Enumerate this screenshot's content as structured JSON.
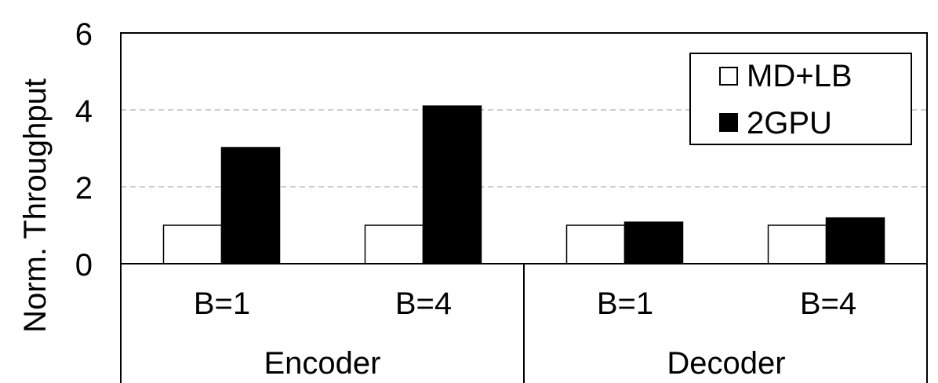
{
  "chart_data": {
    "type": "bar",
    "ylabel": "Norm. Throughput",
    "ylim": [
      0,
      6
    ],
    "yticks": [
      "0",
      "2",
      "4",
      "6"
    ],
    "grid": "dashed horizontal at 2 and 4",
    "legend_placement": "top-right",
    "groups": [
      "Encoder",
      "Decoder"
    ],
    "categories": [
      "B=1",
      "B=4",
      "B=1",
      "B=4"
    ],
    "series": [
      {
        "name": "MD+LB",
        "color": "#ffffff",
        "values": [
          1,
          1,
          1,
          1
        ]
      },
      {
        "name": "2GPU",
        "color": "#000000",
        "values": [
          3.02,
          4.1,
          1.08,
          1.19
        ]
      }
    ]
  }
}
